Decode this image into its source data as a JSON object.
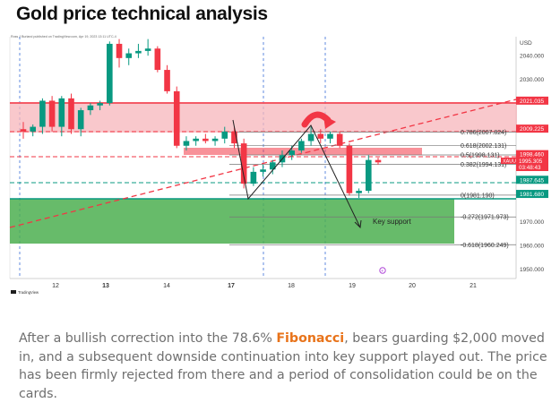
{
  "title": "Gold price technical analysis",
  "chart_header": "Ross J Burland published on TradingView.com, Apr 19, 2023 13:11 UTC-4",
  "brand": "TradingView",
  "currency": "USD",
  "symbol": "XAUUSD",
  "current_price": "1995.305",
  "countdown": "03:48:43",
  "annotation_key_support": "Key support",
  "article": {
    "pre": "After a bullish correction into the 78.6% ",
    "keyword": "Fibonacci",
    "post": ", bears guarding $2,000 moved in, and a subsequent downside continuation into key support played out. The price has been firmly rejected from there and a period of consolidation could be on the cards."
  },
  "colors": {
    "bull": "#089981",
    "bear": "#f23645",
    "resistance_zone": "#f7b6bb",
    "support_zone": "#4caf50",
    "price_tag": "#f23645"
  },
  "chart_data": {
    "type": "candlestick",
    "x_ticks": [
      "12",
      "13",
      "14",
      "17",
      "18",
      "19",
      "20",
      "21"
    ],
    "y_ticks": [
      "1950.000",
      "1960.000",
      "1970.000",
      "2030.000",
      "2040.000"
    ],
    "ylim": [
      1946,
      2048
    ],
    "candles": [
      {
        "o": 2009,
        "h": 2012,
        "l": 2005,
        "c": 2008
      },
      {
        "o": 2008,
        "h": 2011,
        "l": 2006,
        "c": 2010
      },
      {
        "o": 2010,
        "h": 2022,
        "l": 2007,
        "c": 2021
      },
      {
        "o": 2021,
        "h": 2023,
        "l": 2008,
        "c": 2010
      },
      {
        "o": 2010,
        "h": 2023,
        "l": 2006,
        "c": 2022
      },
      {
        "o": 2022,
        "h": 2024,
        "l": 2007,
        "c": 2009
      },
      {
        "o": 2009,
        "h": 2018,
        "l": 2006,
        "c": 2017
      },
      {
        "o": 2017,
        "h": 2020,
        "l": 2015,
        "c": 2019
      },
      {
        "o": 2019,
        "h": 2021,
        "l": 2017,
        "c": 2020
      },
      {
        "o": 2020,
        "h": 2046,
        "l": 2019,
        "c": 2045
      },
      {
        "o": 2045,
        "h": 2047,
        "l": 2035,
        "c": 2039
      },
      {
        "o": 2039,
        "h": 2043,
        "l": 2036,
        "c": 2041
      },
      {
        "o": 2041,
        "h": 2045,
        "l": 2039,
        "c": 2042
      },
      {
        "o": 2042,
        "h": 2047,
        "l": 2040,
        "c": 2043
      },
      {
        "o": 2043,
        "h": 2044,
        "l": 2033,
        "c": 2034
      },
      {
        "o": 2034,
        "h": 2036,
        "l": 2024,
        "c": 2025
      },
      {
        "o": 2025,
        "h": 2027,
        "l": 2001,
        "c": 2002
      },
      {
        "o": 2002,
        "h": 2006,
        "l": 2000,
        "c": 2004
      },
      {
        "o": 2004,
        "h": 2006,
        "l": 2002,
        "c": 2005
      },
      {
        "o": 2005,
        "h": 2007,
        "l": 2003,
        "c": 2004
      },
      {
        "o": 2004,
        "h": 2006,
        "l": 2002,
        "c": 2005
      },
      {
        "o": 2005,
        "h": 2010,
        "l": 2003,
        "c": 2008
      },
      {
        "o": 2008,
        "h": 2010,
        "l": 2001,
        "c": 2003
      },
      {
        "o": 2003,
        "h": 2005,
        "l": 1984,
        "c": 1986
      },
      {
        "o": 1986,
        "h": 1993,
        "l": 1985,
        "c": 1991
      },
      {
        "o": 1991,
        "h": 1994,
        "l": 1989,
        "c": 1992
      },
      {
        "o": 1992,
        "h": 1996,
        "l": 1990,
        "c": 1995
      },
      {
        "o": 1995,
        "h": 2000,
        "l": 1993,
        "c": 1998
      },
      {
        "o": 1998,
        "h": 2002,
        "l": 1996,
        "c": 2000
      },
      {
        "o": 2000,
        "h": 2005,
        "l": 1999,
        "c": 2004
      },
      {
        "o": 2004,
        "h": 2010,
        "l": 2002,
        "c": 2007
      },
      {
        "o": 2007,
        "h": 2009,
        "l": 2003,
        "c": 2005
      },
      {
        "o": 2005,
        "h": 2008,
        "l": 2003,
        "c": 2007
      },
      {
        "o": 2007,
        "h": 2008,
        "l": 2001,
        "c": 2002
      },
      {
        "o": 2002,
        "h": 2003,
        "l": 1981,
        "c": 1982
      },
      {
        "o": 1982,
        "h": 1984,
        "l": 1980,
        "c": 1983
      },
      {
        "o": 1983,
        "h": 1998,
        "l": 1982,
        "c": 1996
      },
      {
        "o": 1996,
        "h": 1997,
        "l": 1994,
        "c": 1995
      }
    ],
    "fib_levels": [
      {
        "label": "0.786(2007.824)",
        "value": 2007.824
      },
      {
        "label": "0.618(2002.131)",
        "value": 2002.131
      },
      {
        "label": "0.5(1998.131)",
        "value": 1998.131
      },
      {
        "label": "0.382(1994.131)",
        "value": 1994.131
      },
      {
        "label": "0(1981.190)",
        "value": 1981.19
      },
      {
        "label": "-0.272(1971.973)",
        "value": 1971.973
      },
      {
        "label": "-0.618(1960.249)",
        "value": 1960.249
      }
    ],
    "price_tags": [
      {
        "label": "2021.035",
        "value": 2021.035,
        "color": "#f23645"
      },
      {
        "label": "2009.225",
        "value": 2009.225,
        "color": "#f23645"
      },
      {
        "label": "1998.460",
        "value": 1998.46,
        "color": "#f23645"
      },
      {
        "label": "1987.645",
        "value": 1987.645,
        "color": "#089981"
      },
      {
        "label": "1981.680",
        "value": 1981.68,
        "color": "#089981"
      }
    ]
  }
}
